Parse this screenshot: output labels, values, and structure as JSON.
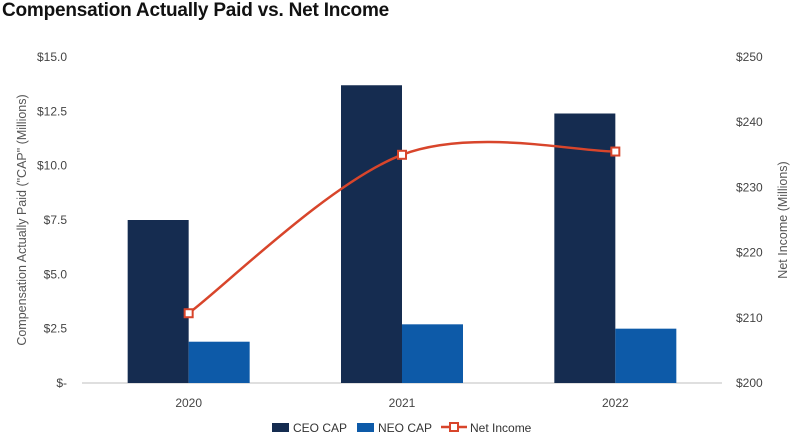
{
  "chart_data": {
    "type": "bar",
    "title": "Compensation Actually Paid vs. Net Income",
    "categories": [
      "2020",
      "2021",
      "2022"
    ],
    "series": [
      {
        "name": "CEO CAP",
        "type": "bar",
        "axis": "left",
        "color": "#152c50",
        "values": [
          7.5,
          13.7,
          12.4
        ]
      },
      {
        "name": "NEO CAP",
        "type": "bar",
        "axis": "left",
        "color": "#0d5aa8",
        "values": [
          1.9,
          2.7,
          2.5
        ]
      },
      {
        "name": "Net Income",
        "type": "line",
        "axis": "right",
        "color": "#d8452b",
        "values": [
          210.7,
          235.0,
          235.5
        ]
      }
    ],
    "ylabel": "Compensation Actually Paid (\"CAP\" (Millions)",
    "y2label": "Net Income (Millions)",
    "ylim": [
      0,
      15
    ],
    "y2lim": [
      200,
      250
    ],
    "yticks": [
      "$-",
      "$2.5",
      "$5.0",
      "$7.5",
      "$10.0",
      "$12.5",
      "$15.0"
    ],
    "y2ticks": [
      "$200",
      "$210",
      "$220",
      "$230",
      "$240",
      "$250"
    ],
    "grid": false,
    "legend": "bottom-center"
  }
}
